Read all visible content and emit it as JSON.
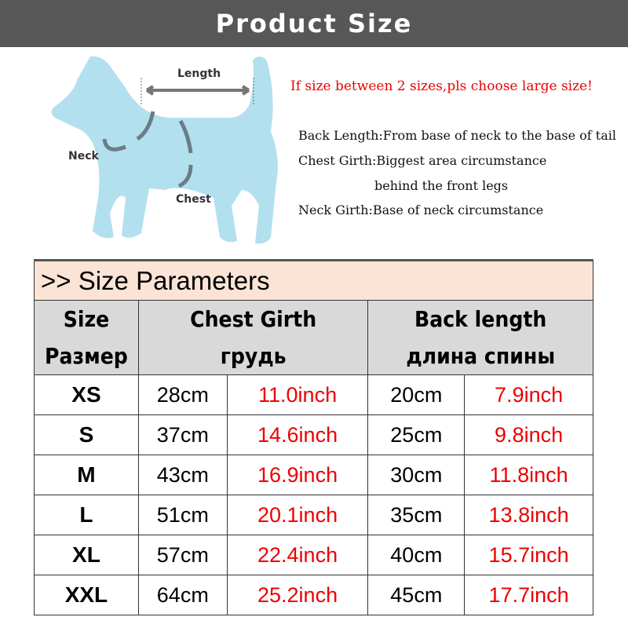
{
  "banner": {
    "title": "Product Size"
  },
  "diagram": {
    "length": "Length",
    "neck": "Neck",
    "chest": "Chest",
    "silhouette_color": "#b3e0ee"
  },
  "note": "If size between 2 sizes,pls choose large size!",
  "descriptions": [
    "Back Length:From base of neck to the base of tail",
    "Chest Girth:Biggest area circumstance",
    "behind the front legs",
    "Neck Girth:Base of neck circumstance"
  ],
  "table": {
    "title": ">> Size Parameters",
    "headers": {
      "size": "Size",
      "size_ru": "Размер",
      "chest": "Chest Girth",
      "chest_ru": "грудь",
      "back": "Back length",
      "back_ru": "длина спины"
    },
    "rows": [
      {
        "size": "XS",
        "chest_cm": "28cm",
        "chest_in": "11.0inch",
        "back_cm": "20cm",
        "back_in": "7.9inch"
      },
      {
        "size": "S",
        "chest_cm": "37cm",
        "chest_in": "14.6inch",
        "back_cm": "25cm",
        "back_in": "9.8inch"
      },
      {
        "size": "M",
        "chest_cm": "43cm",
        "chest_in": "16.9inch",
        "back_cm": "30cm",
        "back_in": "11.8inch"
      },
      {
        "size": "L",
        "chest_cm": "51cm",
        "chest_in": "20.1inch",
        "back_cm": "35cm",
        "back_in": "13.8inch"
      },
      {
        "size": "XL",
        "chest_cm": "57cm",
        "chest_in": "22.4inch",
        "back_cm": "40cm",
        "back_in": "15.7inch"
      },
      {
        "size": "XXL",
        "chest_cm": "64cm",
        "chest_in": "25.2inch",
        "back_cm": "45cm",
        "back_in": "17.7inch"
      }
    ]
  }
}
